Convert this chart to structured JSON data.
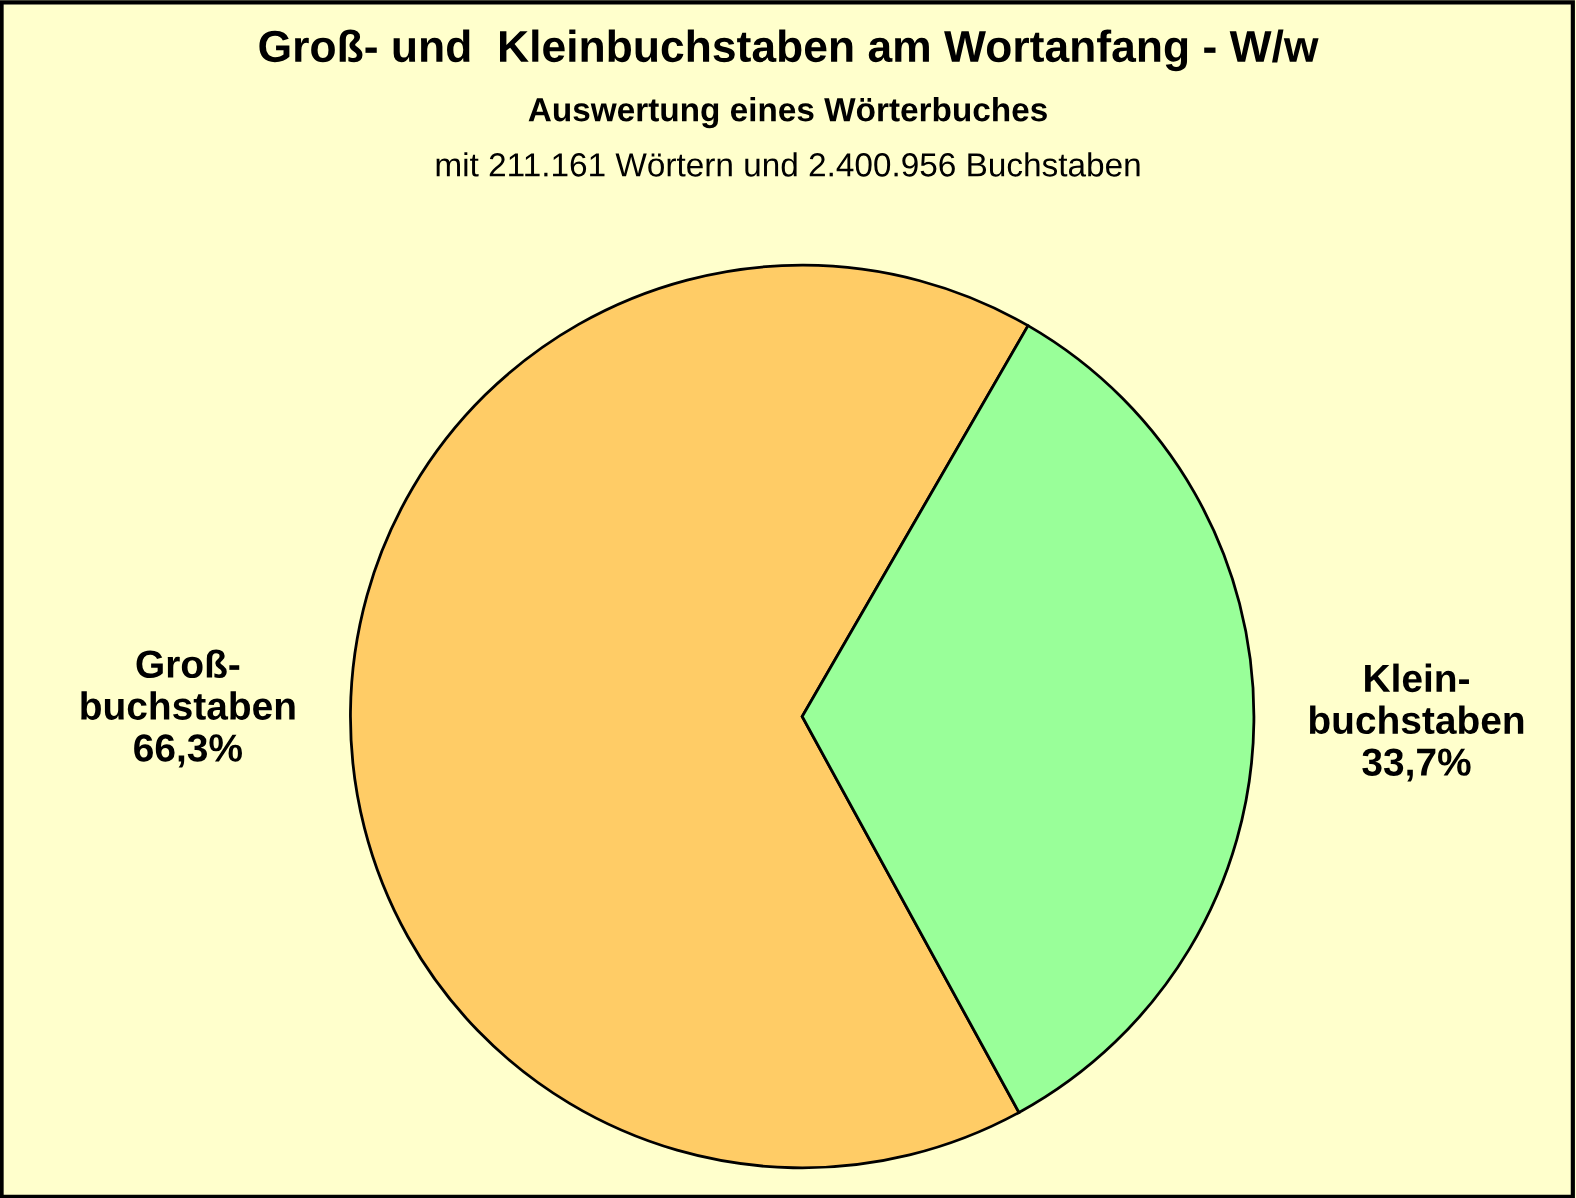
{
  "chart_data": {
    "type": "pie",
    "title": "Groß- und  Kleinbuchstaben am Wortanfang - W/w",
    "subtitle": "Auswertung eines Wörterbuches",
    "annotations": [
      "mit 211.161 Wörtern und 2.400.956 Buchstaben"
    ],
    "categories": [
      "Groß-\nbuchstaben",
      "Klein-\nbuchstaben"
    ],
    "values": [
      66.3,
      33.7
    ],
    "value_labels": [
      "66,3%",
      "33,7%"
    ],
    "colors": [
      "#ffcc66",
      "#99ff99"
    ]
  }
}
